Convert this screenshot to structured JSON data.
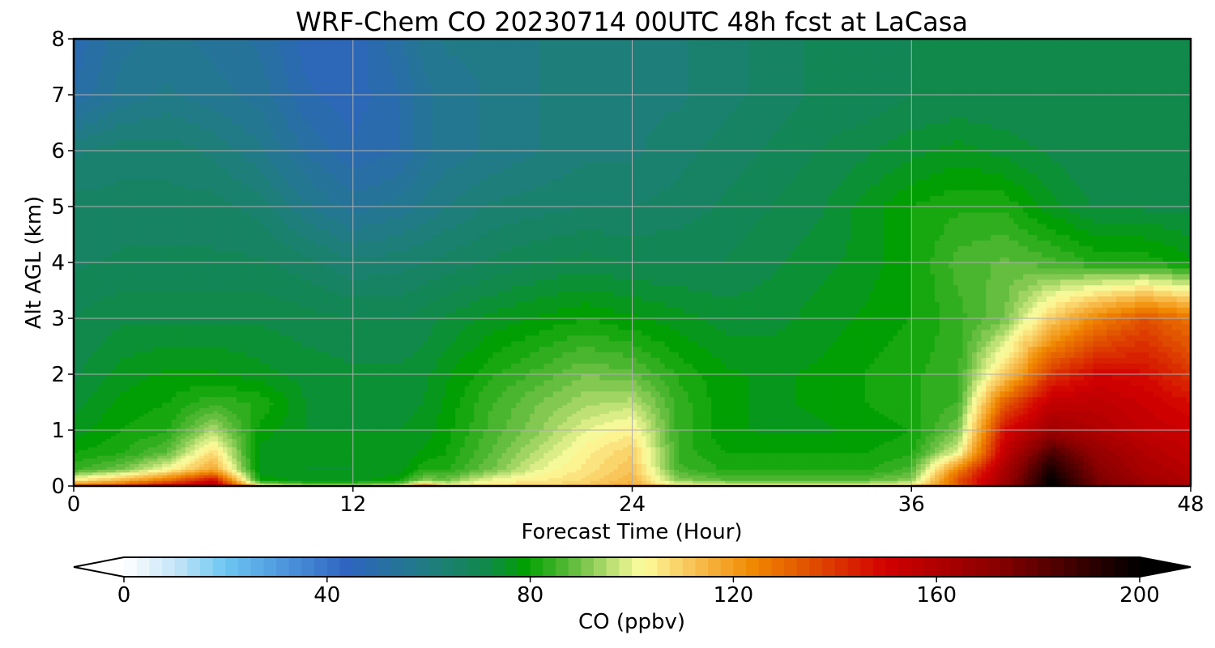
{
  "chart_data": {
    "type": "heatmap",
    "title": "WRF-Chem CO  20230714 00UTC 48h fcst at LaCasa",
    "xlabel": "Forecast Time (Hour)",
    "ylabel": "Alt AGL (km)",
    "xlim": [
      0,
      48
    ],
    "ylim": [
      0,
      8
    ],
    "xticks": [
      0,
      12,
      24,
      36,
      48
    ],
    "yticks": [
      0,
      1,
      2,
      3,
      4,
      5,
      6,
      7,
      8
    ],
    "grid": true,
    "colorbar": {
      "label": "CO  (ppbv)",
      "ticks": [
        0,
        40,
        80,
        120,
        160,
        200
      ],
      "range": [
        0,
        200
      ],
      "extend": "both",
      "orientation": "horizontal",
      "stops": [
        {
          "v": 0,
          "c": "#ffffff"
        },
        {
          "v": 10,
          "c": "#c6e6f8"
        },
        {
          "v": 20,
          "c": "#6cc6f2"
        },
        {
          "v": 32,
          "c": "#4d94dc"
        },
        {
          "v": 44,
          "c": "#2e64c0"
        },
        {
          "v": 58,
          "c": "#227a8a"
        },
        {
          "v": 72,
          "c": "#0f8a46"
        },
        {
          "v": 79,
          "c": "#00a000"
        },
        {
          "v": 88,
          "c": "#5cba3a"
        },
        {
          "v": 97,
          "c": "#c8e47a"
        },
        {
          "v": 102,
          "c": "#fdfd9e"
        },
        {
          "v": 112,
          "c": "#f8c254"
        },
        {
          "v": 124,
          "c": "#f08800"
        },
        {
          "v": 136,
          "c": "#e04a00"
        },
        {
          "v": 150,
          "c": "#d20000"
        },
        {
          "v": 172,
          "c": "#880000"
        },
        {
          "v": 200,
          "c": "#000000"
        }
      ]
    },
    "times": [
      0,
      2,
      4,
      6,
      8,
      10,
      12,
      14,
      15,
      16,
      18,
      20,
      22,
      24,
      26,
      28,
      30,
      32,
      34,
      36,
      38,
      40,
      42,
      44,
      46,
      48
    ],
    "altitudes": [
      0,
      0.1,
      0.3,
      0.6,
      1,
      1.5,
      2,
      3,
      4,
      5,
      6,
      7,
      8
    ],
    "co_ppbv": [
      [
        135,
        140,
        155,
        165,
        108,
        100,
        100,
        102,
        125,
        108,
        108,
        110,
        112,
        118,
        108,
        106,
        104,
        104,
        105,
        108,
        130,
        165,
        200,
        175,
        165,
        160
      ],
      [
        105,
        115,
        130,
        150,
        80,
        76,
        76,
        80,
        92,
        90,
        102,
        105,
        108,
        115,
        92,
        88,
        88,
        88,
        88,
        92,
        135,
        165,
        200,
        175,
        165,
        160
      ],
      [
        84,
        90,
        102,
        118,
        76,
        75,
        75,
        76,
        82,
        82,
        90,
        100,
        106,
        112,
        86,
        82,
        82,
        82,
        82,
        86,
        125,
        162,
        195,
        172,
        162,
        158
      ],
      [
        80,
        82,
        88,
        108,
        76,
        75,
        75,
        75,
        78,
        80,
        88,
        96,
        104,
        110,
        84,
        80,
        80,
        80,
        80,
        82,
        100,
        155,
        185,
        168,
        160,
        155
      ],
      [
        76,
        80,
        82,
        95,
        79,
        75,
        75,
        75,
        76,
        79,
        86,
        92,
        100,
        104,
        84,
        78,
        77,
        77,
        78,
        80,
        90,
        148,
        165,
        160,
        155,
        152
      ],
      [
        74,
        78,
        80,
        84,
        82,
        75,
        74,
        74,
        75,
        78,
        85,
        90,
        94,
        96,
        84,
        78,
        77,
        78,
        80,
        82,
        85,
        132,
        155,
        156,
        152,
        148
      ],
      [
        72,
        76,
        78,
        78,
        76,
        74,
        73,
        73,
        74,
        77,
        82,
        86,
        90,
        88,
        82,
        78,
        77,
        78,
        80,
        82,
        84,
        110,
        140,
        150,
        148,
        140
      ],
      [
        70,
        72,
        72,
        72,
        72,
        71,
        70,
        70,
        71,
        73,
        76,
        78,
        80,
        78,
        76,
        74,
        74,
        76,
        78,
        80,
        84,
        90,
        110,
        125,
        135,
        128
      ],
      [
        67,
        68,
        68,
        68,
        68,
        66,
        63,
        64,
        65,
        66,
        68,
        70,
        71,
        70,
        70,
        70,
        72,
        74,
        76,
        80,
        86,
        88,
        86,
        82,
        82,
        78
      ],
      [
        66,
        66,
        66,
        66,
        64,
        58,
        54,
        56,
        58,
        60,
        63,
        64,
        65,
        65,
        66,
        68,
        70,
        72,
        76,
        80,
        82,
        82,
        76,
        72,
        72,
        72
      ],
      [
        62,
        64,
        64,
        62,
        58,
        52,
        48,
        50,
        54,
        56,
        58,
        60,
        62,
        62,
        64,
        66,
        68,
        70,
        72,
        74,
        76,
        74,
        72,
        70,
        70,
        70
      ],
      [
        50,
        56,
        58,
        56,
        54,
        48,
        46,
        50,
        54,
        56,
        58,
        60,
        60,
        62,
        62,
        64,
        66,
        68,
        68,
        70,
        70,
        70,
        70,
        70,
        70,
        70
      ],
      [
        48,
        54,
        56,
        54,
        52,
        46,
        46,
        52,
        56,
        58,
        58,
        60,
        60,
        62,
        62,
        64,
        66,
        68,
        68,
        70,
        70,
        70,
        70,
        70,
        70,
        70
      ]
    ]
  }
}
